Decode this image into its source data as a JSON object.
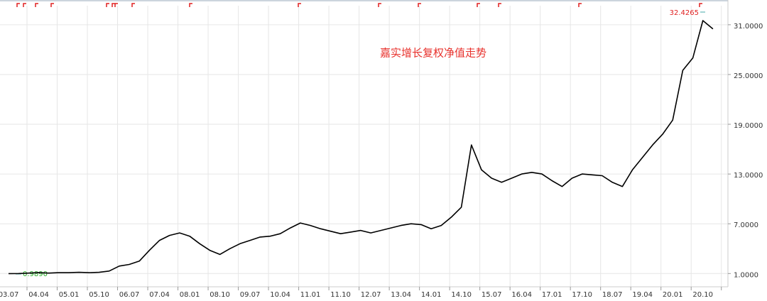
{
  "chart_data": {
    "type": "line",
    "title": "嘉实增长复权净值走势",
    "annotations": {
      "max": "32.4265",
      "min": "0.9890"
    },
    "categories": [
      "03.07",
      null,
      null,
      "04.04",
      null,
      null,
      "05.01",
      null,
      null,
      "05.10",
      null,
      null,
      "06.07",
      null,
      null,
      "07.04",
      null,
      null,
      "08.01",
      null,
      null,
      "08.10",
      null,
      null,
      "09.07",
      null,
      null,
      "10.04",
      null,
      null,
      "11.01",
      null,
      null,
      "11.10",
      null,
      null,
      "12.07",
      null,
      null,
      "13.04",
      null,
      null,
      "14.01",
      null,
      null,
      "14.10",
      null,
      null,
      "15.07",
      null,
      null,
      "16.04",
      null,
      null,
      "17.01",
      null,
      null,
      "17.10",
      null,
      null,
      "18.07",
      null,
      null,
      "19.04",
      null,
      null,
      "20.01",
      null,
      null,
      "20.10",
      null
    ],
    "values": [
      0.99,
      1.0,
      1.05,
      1.1,
      1.05,
      1.1,
      1.1,
      1.15,
      1.1,
      1.15,
      1.3,
      1.9,
      2.1,
      2.5,
      3.8,
      5.0,
      5.6,
      5.9,
      5.5,
      4.6,
      3.8,
      3.3,
      4.0,
      4.6,
      5.0,
      5.4,
      5.5,
      5.8,
      6.5,
      7.1,
      6.8,
      6.4,
      6.1,
      5.8,
      6.0,
      6.2,
      5.9,
      6.2,
      6.5,
      6.8,
      7.0,
      6.9,
      6.4,
      6.8,
      7.8,
      9.0,
      16.5,
      13.5,
      12.5,
      12.0,
      12.5,
      13.0,
      13.2,
      13.0,
      12.2,
      11.5,
      12.5,
      13.0,
      12.9,
      12.8,
      12.0,
      11.5,
      13.5,
      15.0,
      16.5,
      17.8,
      19.5,
      25.5,
      27.0,
      31.5,
      30.5
    ],
    "color": "#000000",
    "ylim": [
      -0.6,
      33.3
    ],
    "yticks": [
      {
        "value": 1,
        "label": "1.0000"
      },
      {
        "value": 7,
        "label": "7.0000"
      },
      {
        "value": 13,
        "label": "13.0000"
      },
      {
        "value": 19,
        "label": "19.0000"
      },
      {
        "value": 25,
        "label": "25.0000"
      },
      {
        "value": 31,
        "label": "31.0000"
      }
    ],
    "grid": true
  }
}
